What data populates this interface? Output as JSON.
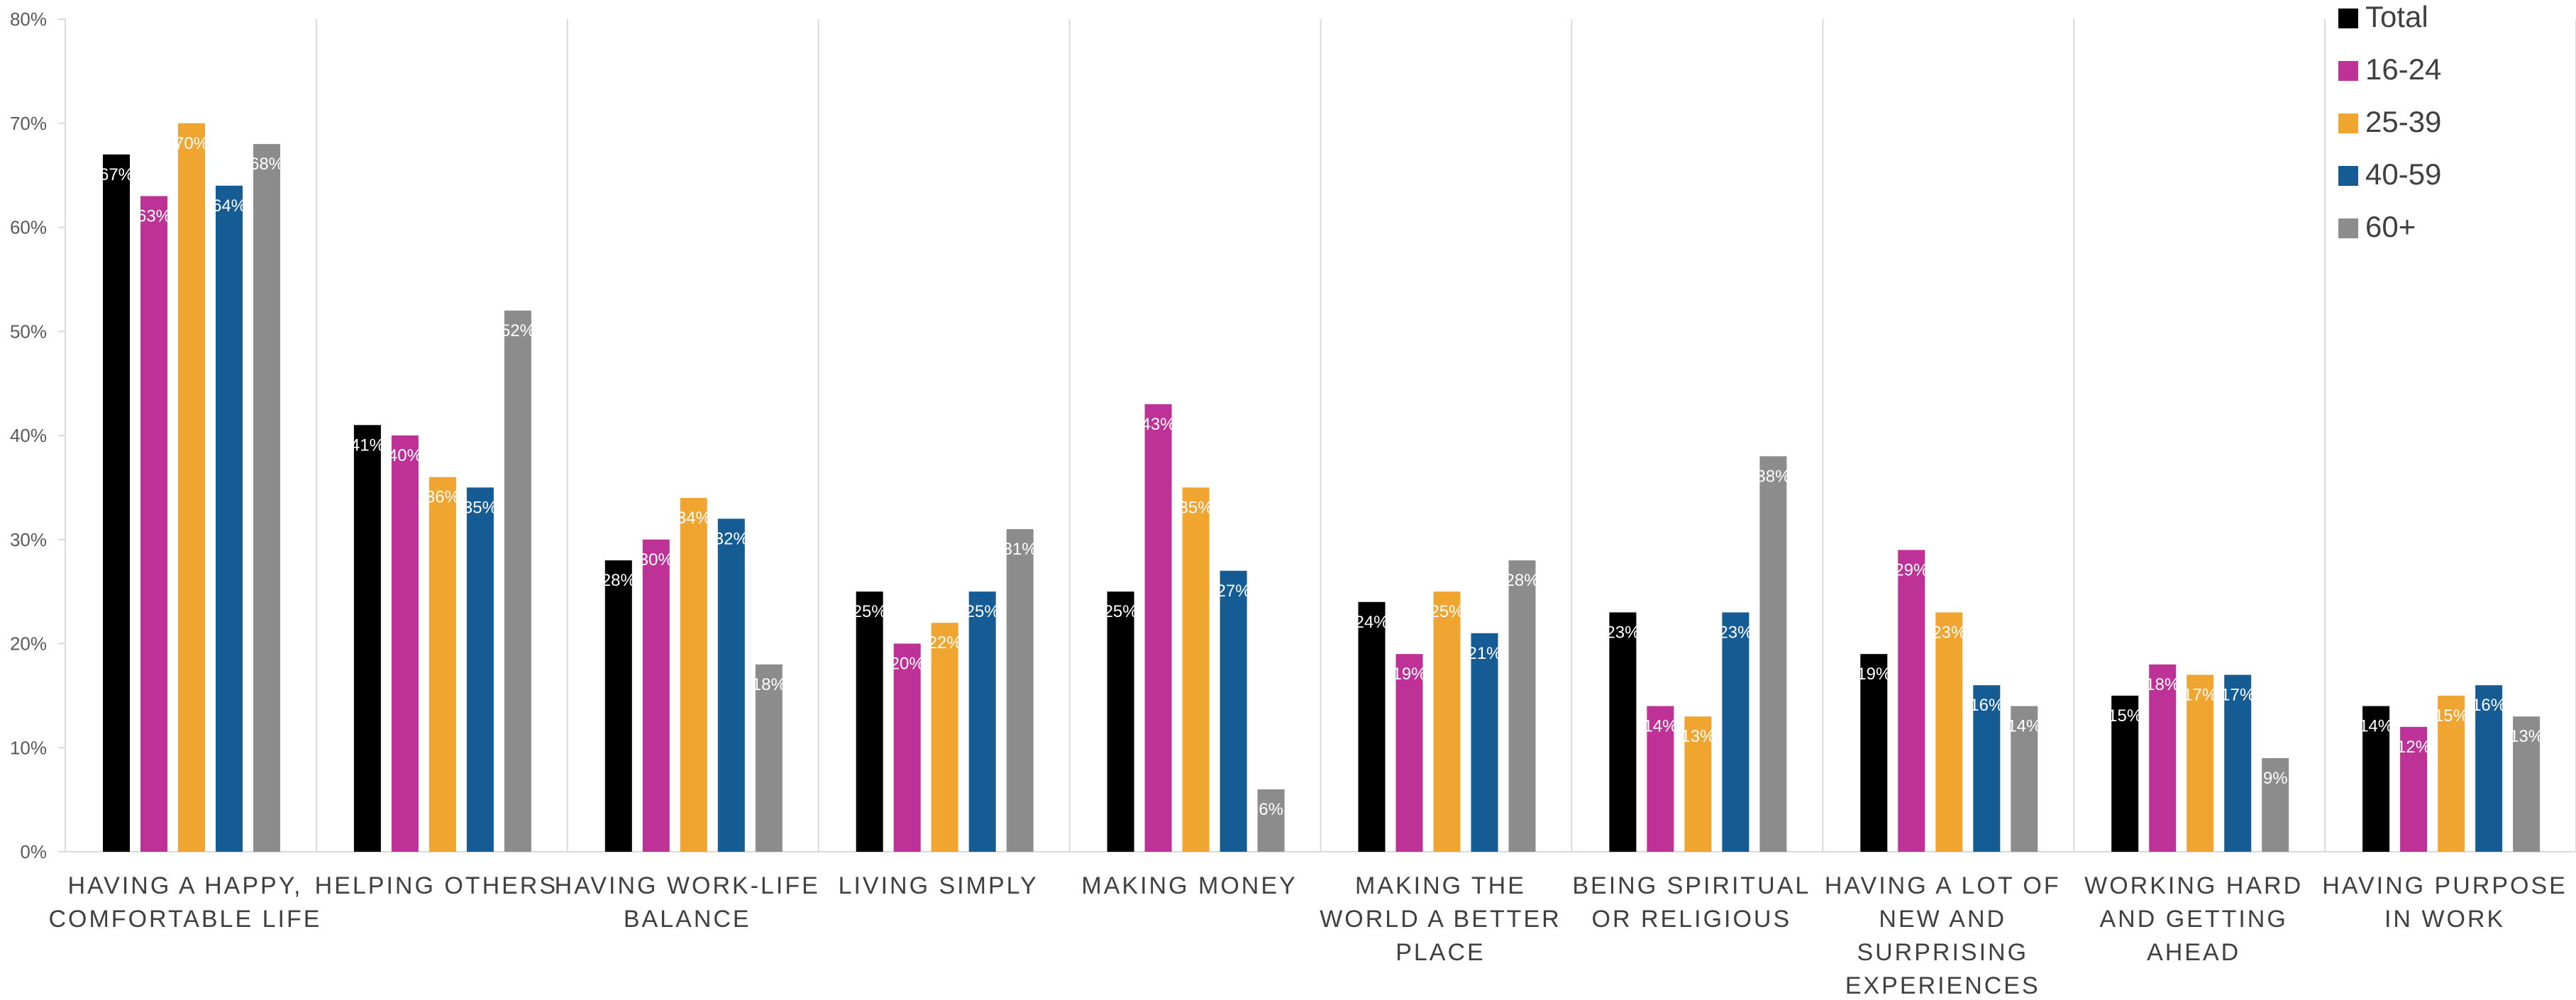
{
  "chart_data": {
    "type": "bar",
    "categories": [
      [
        "HAVING A HAPPY,",
        "COMFORTABLE LIFE"
      ],
      [
        "HELPING OTHERS"
      ],
      [
        "HAVING WORK-LIFE",
        "BALANCE"
      ],
      [
        "LIVING SIMPLY"
      ],
      [
        "MAKING MONEY"
      ],
      [
        "MAKING THE",
        "WORLD A BETTER",
        "PLACE"
      ],
      [
        "BEING SPIRITUAL",
        "OR RELIGIOUS"
      ],
      [
        "HAVING A LOT OF",
        "NEW AND",
        "SURPRISING",
        "EXPERIENCES"
      ],
      [
        "WORKING HARD",
        "AND GETTING",
        "AHEAD"
      ],
      [
        "HAVING PURPOSE",
        "IN WORK"
      ]
    ],
    "series": [
      {
        "name": "Total",
        "color": "#000000",
        "values": [
          0.67,
          0.41,
          0.28,
          0.25,
          0.25,
          0.24,
          0.23,
          0.19,
          0.15,
          0.14
        ],
        "labels": [
          "67%",
          "41%",
          "28%",
          "25%",
          "25%",
          "24%",
          "23%",
          "19%",
          "15%",
          "14%"
        ]
      },
      {
        "name": "16-24",
        "color": "#be3196",
        "values": [
          0.63,
          0.4,
          0.3,
          0.2,
          0.43,
          0.19,
          0.14,
          0.29,
          0.18,
          0.12
        ],
        "labels": [
          "63%",
          "40%",
          "30%",
          "20%",
          "43%",
          "19%",
          "14%",
          "29%",
          "18%",
          "12%"
        ]
      },
      {
        "name": "25-39",
        "color": "#f0a530",
        "values": [
          0.7,
          0.36,
          0.34,
          0.22,
          0.35,
          0.25,
          0.13,
          0.23,
          0.17,
          0.15
        ],
        "labels": [
          "70%",
          "36%",
          "34%",
          "22%",
          "35%",
          "25%",
          "13%",
          "23%",
          "17%",
          "15%"
        ]
      },
      {
        "name": "40-59",
        "color": "#155b94",
        "values": [
          0.64,
          0.35,
          0.32,
          0.25,
          0.27,
          0.21,
          0.23,
          0.16,
          0.17,
          0.16
        ],
        "labels": [
          "64%",
          "35%",
          "32%",
          "25%",
          "27%",
          "21%",
          "23%",
          "16%",
          "17%",
          "16%"
        ]
      },
      {
        "name": "60+",
        "color": "#8c8c8c",
        "values": [
          0.68,
          0.52,
          0.18,
          0.31,
          0.06,
          0.28,
          0.38,
          0.14,
          0.09,
          0.13
        ],
        "labels": [
          "68%",
          "52%",
          "18%",
          "31%",
          "6%",
          "28%",
          "38%",
          "14%",
          "9%",
          "13%"
        ]
      }
    ],
    "y_ticks": [
      "0%",
      "10%",
      "20%",
      "30%",
      "40%",
      "50%",
      "60%",
      "70%",
      "80%"
    ],
    "ylim": [
      0,
      0.8
    ],
    "grid": "vertical separators between categories",
    "legend": "top-right"
  }
}
